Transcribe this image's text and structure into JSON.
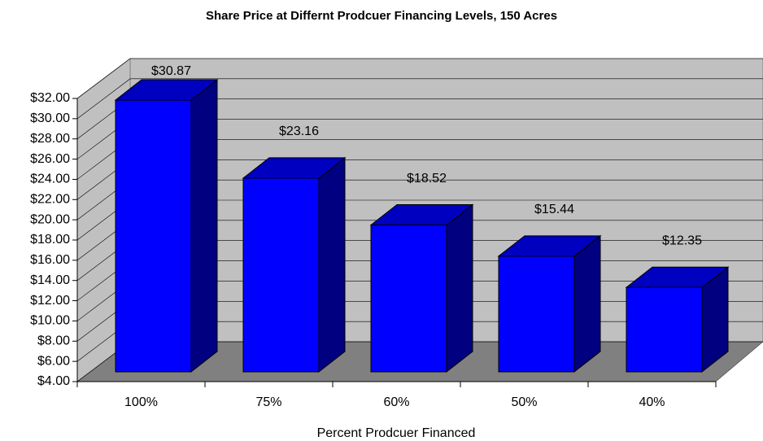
{
  "chart_data": {
    "type": "bar3d",
    "title": "Share Price at Differnt Prodcuer Financing Levels, 150 Acres",
    "x_label": "Percent Prodcuer Financed",
    "categories": [
      "100%",
      "75%",
      "60%",
      "50%",
      "40%"
    ],
    "values": [
      30.87,
      23.16,
      18.52,
      15.44,
      12.35
    ],
    "value_labels": [
      "$30.87",
      "$23.16",
      "$18.52",
      "$15.44",
      "$12.35"
    ],
    "color": "#0000ff",
    "ylim": [
      4,
      32
    ],
    "yticks": [
      {
        "value": 4,
        "label": "$4.00"
      },
      {
        "value": 6,
        "label": "$6.00"
      },
      {
        "value": 8,
        "label": "$8.00"
      },
      {
        "value": 10,
        "label": "$10.00"
      },
      {
        "value": 12,
        "label": "$12.00"
      },
      {
        "value": 14,
        "label": "$14.00"
      },
      {
        "value": 16,
        "label": "$16.00"
      },
      {
        "value": 18,
        "label": "$18.00"
      },
      {
        "value": 20,
        "label": "$20.00"
      },
      {
        "value": 22,
        "label": "$22.00"
      },
      {
        "value": 24,
        "label": "$24.00"
      },
      {
        "value": 26,
        "label": "$26.00"
      },
      {
        "value": 28,
        "label": "$28.00"
      },
      {
        "value": 30,
        "label": "$30.00"
      },
      {
        "value": 32,
        "label": "$32.00"
      }
    ],
    "grid": true
  }
}
